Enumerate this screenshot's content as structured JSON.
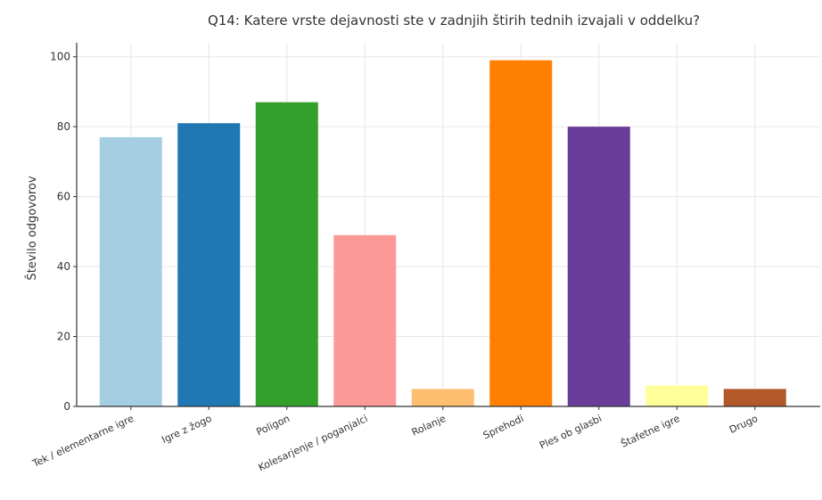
{
  "chart_data": {
    "type": "bar",
    "title": "Q14: Katere vrste dejavnosti ste v zadnjih štirih tednih izvajali v oddelku?",
    "xlabel": "",
    "ylabel": "Število odgovorov",
    "ylim": [
      0,
      104
    ],
    "yticks": [
      0,
      20,
      40,
      60,
      80,
      100
    ],
    "grid": true,
    "categories": [
      "Tek / elementarne igre",
      "Igre z žogo",
      "Poligon",
      "Kolesarjenje / poganjalci",
      "Rolanje",
      "Sprehodi",
      "Ples ob glasbi",
      "Štafetne igre",
      "Drugo"
    ],
    "values": [
      77,
      81,
      87,
      49,
      5,
      99,
      80,
      6,
      5
    ],
    "colors": [
      "#a6cee3",
      "#1f78b4",
      "#33a02c",
      "#fb9a99",
      "#fdbf6f",
      "#ff7f00",
      "#6a3d9a",
      "#ffff99",
      "#b15928"
    ]
  }
}
